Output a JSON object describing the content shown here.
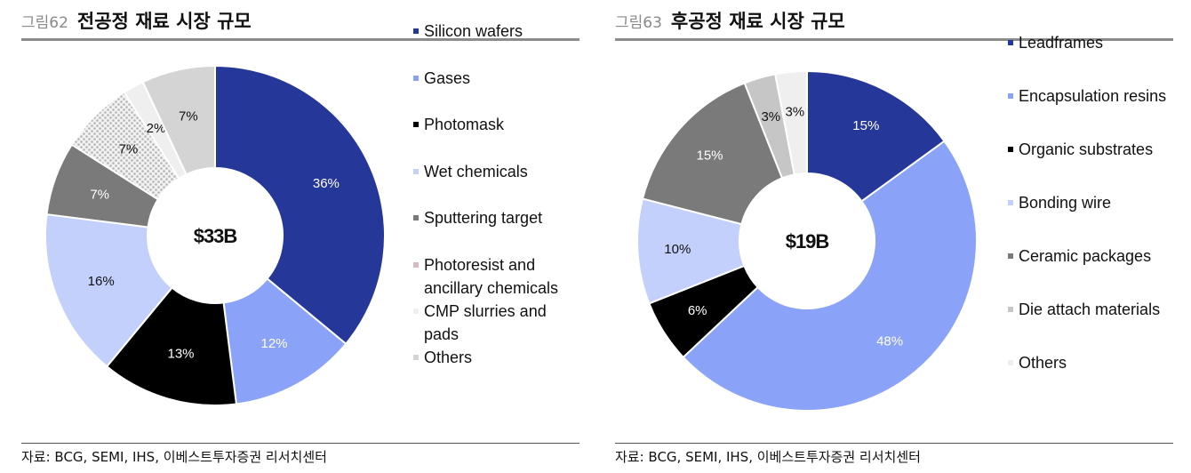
{
  "figures": [
    {
      "fig_num": "그림62",
      "title": "전공정 재료 시장 규모",
      "source": "자료: BCG, SEMI, IHS, 이베스트투자증권 리서치센터"
    },
    {
      "fig_num": "그림63",
      "title": "후공정 재료 시장 규모",
      "source": "자료: BCG, SEMI, IHS, 이베스트투자증권 리서치센터"
    }
  ],
  "chart_data": [
    {
      "type": "pie",
      "center_label": "$33B",
      "categories": [
        "Silicon wafers",
        "Gases",
        "Photomask",
        "Wet chemicals",
        "Sputtering target",
        "Photoresist and ancillary chemicals",
        "CMP slurries and pads",
        "Others"
      ],
      "values": [
        36,
        12,
        13,
        16,
        7,
        7,
        2,
        7
      ],
      "value_labels": [
        "36%",
        "12%",
        "13%",
        "16%",
        "7%",
        "7%",
        "2%",
        "7%"
      ],
      "colors": [
        "#26379a",
        "#8aa2f7",
        "#000000",
        "#c3d0fb",
        "#7a7a7a",
        "#d8d8d8",
        "#efefef",
        "#d4d4d4"
      ],
      "label_colors": [
        "#ffffff",
        "#ffffff",
        "#ffffff",
        "#111111",
        "#ffffff",
        "#111111",
        "#111111",
        "#111111"
      ],
      "patterns": [
        "",
        "",
        "",
        "",
        "",
        "dots",
        "",
        ""
      ],
      "legend_placement": "right"
    },
    {
      "type": "pie",
      "center_label": "$19B",
      "categories": [
        "Leadframes",
        "Encapsulation resins",
        "Organic substrates",
        "Bonding wire",
        "Ceramic packages",
        "Die attach materials",
        "Others"
      ],
      "values": [
        15,
        48,
        6,
        10,
        15,
        3,
        3
      ],
      "value_labels": [
        "15%",
        "48%",
        "6%",
        "10%",
        "15%",
        "3%",
        "3%"
      ],
      "colors": [
        "#26379a",
        "#8aa2f7",
        "#000000",
        "#c3d0fb",
        "#7a7a7a",
        "#c6c6c6",
        "#efefef"
      ],
      "label_colors": [
        "#ffffff",
        "#ffffff",
        "#ffffff",
        "#111111",
        "#ffffff",
        "#111111",
        "#111111"
      ],
      "patterns": [
        "",
        "",
        "",
        "",
        "",
        "",
        ""
      ],
      "legend_placement": "right"
    }
  ]
}
